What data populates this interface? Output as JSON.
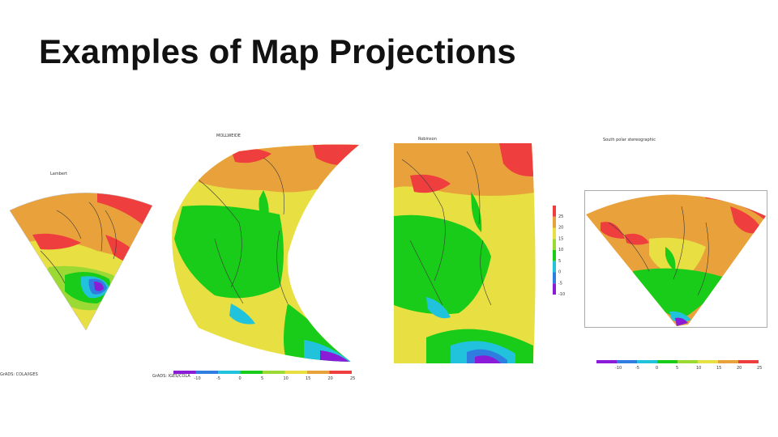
{
  "slide": {
    "title": "Examples of Map Projections"
  },
  "panels": [
    {
      "id": "lambert",
      "label": "Lambert"
    },
    {
      "id": "mollweide",
      "label": "MOLLWEIDE"
    },
    {
      "id": "robinson",
      "label": "Robinson"
    },
    {
      "id": "stereo",
      "label": "South polar stereographic"
    }
  ],
  "footer": {
    "left_credit": "GrADS: COLA/IGES",
    "mid_credit": "GrADS: IGES/COLA"
  },
  "colorbars": {
    "horizontal_ticks": [
      "-10",
      "-5",
      "0",
      "5",
      "10",
      "15",
      "20",
      "25"
    ],
    "vertical_ticks": [
      "25",
      "20",
      "15",
      "10",
      "5",
      "0",
      "-5",
      "-10"
    ]
  },
  "colors": {
    "purple": "#8a1bd6",
    "blue": "#2f7de1",
    "cyan": "#21c3dc",
    "green": "#19cc19",
    "lime": "#9bd934",
    "yellow": "#e8df43",
    "orange": "#e9a23b",
    "red": "#ee3e3e",
    "coast": "#3a3a3a"
  }
}
